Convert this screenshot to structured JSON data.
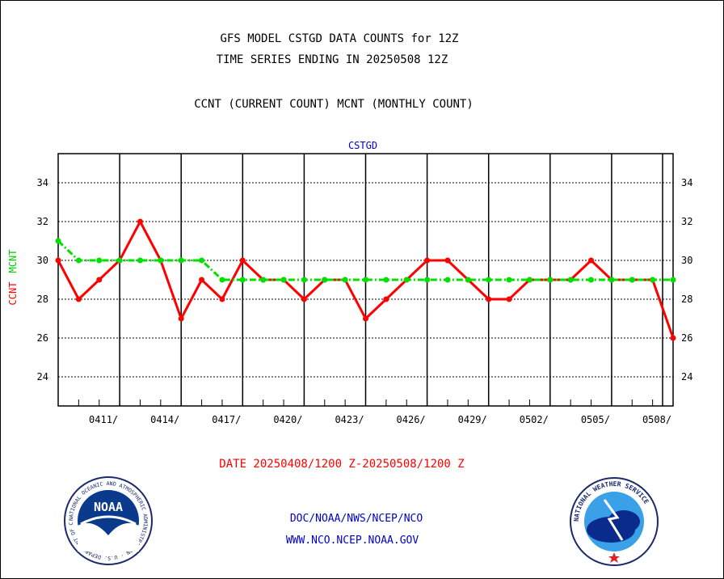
{
  "header": {
    "title_line1": "GFS MODEL CSTGD DATA COUNTS for 12Z",
    "title_line2": "TIME SERIES ENDING IN 20250508 12Z",
    "subtitle": "CCNT (CURRENT COUNT) MCNT (MONTHLY COUNT)"
  },
  "footer": {
    "date_range": "DATE 20250408/1200 Z-20250508/1200 Z",
    "org_line": "DOC/NOAA/NWS/NCEP/NCO",
    "url_line": "WWW.NCO.NCEP.NOAA.GOV",
    "noaa_logo_text": "NOAA",
    "noaa_ring_text": "NATIONAL OCEANIC AND ATMOSPHERIC ADMINISTRATION · U.S. DEPARTMENT OF COMMERCE",
    "nws_ring_text": "NATIONAL WEATHER SERVICE"
  },
  "colors": {
    "ccnt": "#ff0000",
    "mcnt": "#00e000",
    "axis_title": "#0000cc",
    "date_text": "#ff0000",
    "footer_text": "#0000cc"
  },
  "chart_data": {
    "type": "line",
    "title": "CSTGD",
    "ylabel_left_red": "CCNT",
    "ylabel_left_green": "MCNT",
    "x_tick_labels": [
      "0411/",
      "0414/",
      "0417/",
      "0420/",
      "0423/",
      "0426/",
      "0429/",
      "0502/",
      "0505/",
      "0508/"
    ],
    "x_tick_index": [
      3,
      6,
      9,
      12,
      15,
      18,
      21,
      24,
      27,
      30
    ],
    "y_ticks": [
      24,
      26,
      28,
      30,
      32,
      34
    ],
    "ylim": [
      22.5,
      35.5
    ],
    "grid": true,
    "x_dates": [
      "0408",
      "0409",
      "0410",
      "0411",
      "0412",
      "0413",
      "0414",
      "0415",
      "0416",
      "0417",
      "0418",
      "0419",
      "0420",
      "0421",
      "0422",
      "0423",
      "0424",
      "0425",
      "0426",
      "0427",
      "0428",
      "0429",
      "0430",
      "0501",
      "0502",
      "0503",
      "0504",
      "0505",
      "0506",
      "0507",
      "0508"
    ],
    "series": [
      {
        "name": "CCNT",
        "style": "solid",
        "values": [
          30,
          28,
          29,
          30,
          32,
          30,
          27,
          29,
          28,
          30,
          29,
          29,
          28,
          29,
          29,
          27,
          28,
          29,
          30,
          30,
          29,
          28,
          28,
          29,
          29,
          29,
          30,
          29,
          29,
          29,
          26
        ]
      },
      {
        "name": "MCNT",
        "style": "dash-dot",
        "values": [
          31,
          30,
          30,
          30,
          30,
          30,
          30,
          30,
          29,
          29,
          29,
          29,
          29,
          29,
          29,
          29,
          29,
          29,
          29,
          29,
          29,
          29,
          29,
          29,
          29,
          29,
          29,
          29,
          29,
          29,
          29
        ]
      }
    ]
  }
}
